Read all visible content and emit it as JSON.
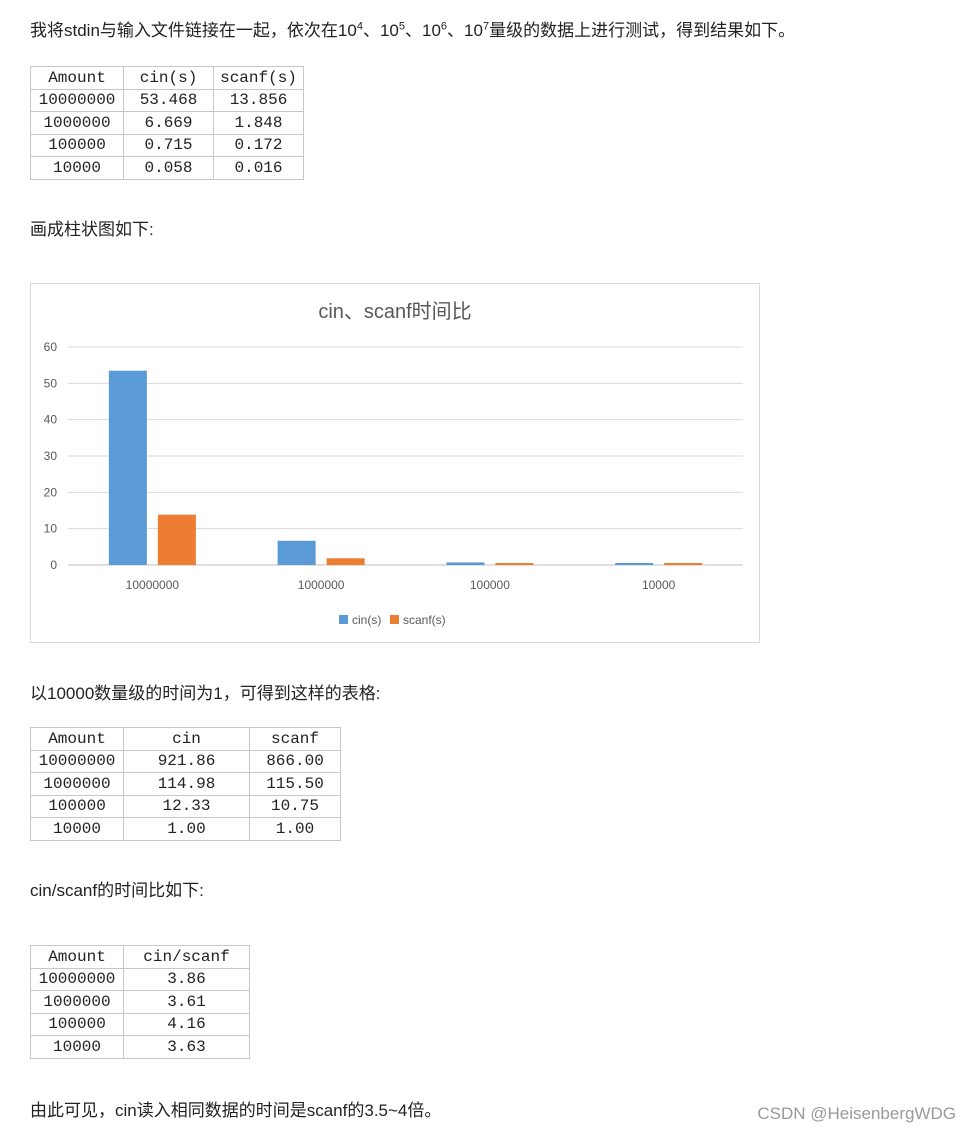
{
  "intro": {
    "text_a": "我将stdin与输入文件链接在一起，依次在10",
    "sup1": "4",
    "sep1": "、10",
    "sup2": "5",
    "sep2": "、10",
    "sup3": "6",
    "sep3": "、10",
    "sup4": "7",
    "text_b": "量级的数据上进行测试，得到结果如下。"
  },
  "table1": {
    "headers": [
      "Amount",
      "cin(s)",
      "scanf(s)"
    ],
    "rows": [
      [
        "10000000",
        "53.468",
        "13.856"
      ],
      [
        "1000000",
        "6.669",
        "1.848"
      ],
      [
        "100000",
        "0.715",
        "0.172"
      ],
      [
        "10000",
        "0.058",
        "0.016"
      ]
    ]
  },
  "para2": "画成柱状图如下:",
  "chart_data": {
    "type": "bar",
    "title": "cin、scanf时间比",
    "categories": [
      "10000000",
      "1000000",
      "100000",
      "10000"
    ],
    "series": [
      {
        "name": "cin(s)",
        "values": [
          53.468,
          6.669,
          0.715,
          0.058
        ],
        "color": "#5b9bd5"
      },
      {
        "name": "scanf(s)",
        "values": [
          13.856,
          1.848,
          0.172,
          0.016
        ],
        "color": "#ed7d31"
      }
    ],
    "ylim": [
      0,
      60
    ],
    "yticks": [
      "0",
      "10",
      "20",
      "30",
      "40",
      "50",
      "60"
    ],
    "grid": true,
    "legend": "bottom"
  },
  "para3": "以10000数量级的时间为1，可得到这样的表格:",
  "table2": {
    "headers": [
      "Amount",
      "cin",
      "scanf"
    ],
    "rows": [
      [
        "10000000",
        "921.86",
        "866.00"
      ],
      [
        "1000000",
        "114.98",
        "115.50"
      ],
      [
        "100000",
        "12.33",
        "10.75"
      ],
      [
        "10000",
        "1.00",
        "1.00"
      ]
    ]
  },
  "para4": "cin/scanf的时间比如下:",
  "table3": {
    "headers": [
      "Amount",
      "cin/scanf"
    ],
    "rows": [
      [
        "10000000",
        "3.86"
      ],
      [
        "1000000",
        "3.61"
      ],
      [
        "100000",
        "4.16"
      ],
      [
        "10000",
        "3.63"
      ]
    ]
  },
  "para5": "由此可见，cin读入相同数据的时间是scanf的3.5~4倍。",
  "watermark": "CSDN @HeisenbergWDG"
}
